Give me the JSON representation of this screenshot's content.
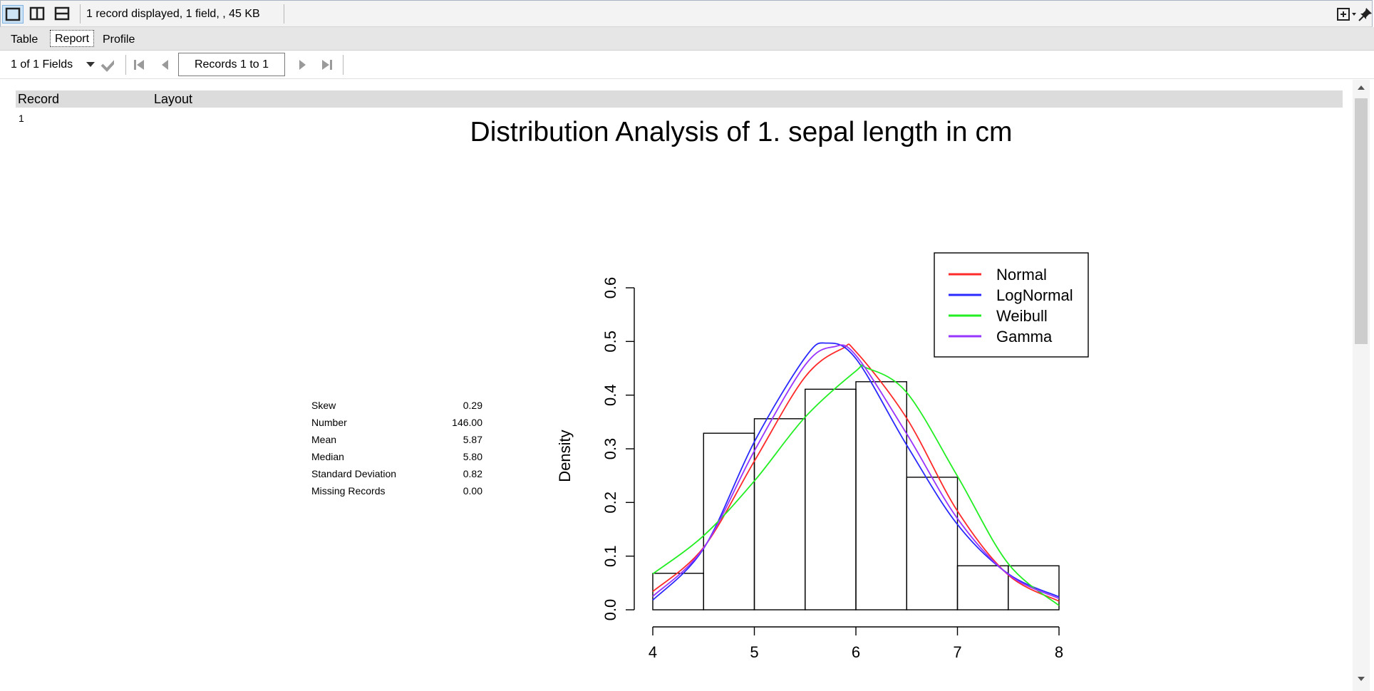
{
  "status": {
    "text": "1 record displayed, 1 field, , 45 KB"
  },
  "tabs": [
    {
      "label": "Table"
    },
    {
      "label": "Report"
    },
    {
      "label": "Profile"
    }
  ],
  "nav": {
    "fields_label": "1 of 1 Fields",
    "records_label": "Records 1 to 1"
  },
  "grid": {
    "col_record": "Record",
    "col_layout": "Layout",
    "row_number": "1"
  },
  "report": {
    "title": "Distribution Analysis of 1. sepal length in cm",
    "stats": [
      {
        "label": "Skew",
        "value": "0.29"
      },
      {
        "label": "Number",
        "value": "146.00"
      },
      {
        "label": "Mean",
        "value": "5.87"
      },
      {
        "label": "Median",
        "value": "5.80"
      },
      {
        "label": "Standard Deviation",
        "value": "0.82"
      },
      {
        "label": "Missing Records",
        "value": "0.00"
      }
    ]
  },
  "chart_data": {
    "type": "bar",
    "ylabel": "Density",
    "xlabel": "",
    "xlim": [
      4,
      8
    ],
    "ylim": [
      0,
      0.6
    ],
    "x_ticks": [
      "4",
      "5",
      "6",
      "7",
      "8"
    ],
    "y_ticks": [
      "0.0",
      "0.1",
      "0.2",
      "0.3",
      "0.4",
      "0.5",
      "0.6"
    ],
    "bins": [
      {
        "x0": 4.0,
        "x1": 4.5,
        "density": 0.068
      },
      {
        "x0": 4.5,
        "x1": 5.0,
        "density": 0.329
      },
      {
        "x0": 5.0,
        "x1": 5.5,
        "density": 0.356
      },
      {
        "x0": 5.5,
        "x1": 6.0,
        "density": 0.411
      },
      {
        "x0": 6.0,
        "x1": 6.5,
        "density": 0.425
      },
      {
        "x0": 6.5,
        "x1": 7.0,
        "density": 0.247
      },
      {
        "x0": 7.0,
        "x1": 7.5,
        "density": 0.082
      },
      {
        "x0": 7.5,
        "x1": 8.0,
        "density": 0.082
      }
    ],
    "legend_position": "top-right",
    "series": [
      {
        "name": "Normal",
        "color": "#ff2a2a",
        "x": [
          4.0,
          4.5,
          5.0,
          5.5,
          5.87,
          6.0,
          6.5,
          7.0,
          7.5,
          8.0
        ],
        "y": [
          0.034,
          0.116,
          0.277,
          0.434,
          0.487,
          0.481,
          0.357,
          0.184,
          0.065,
          0.016
        ]
      },
      {
        "name": "LogNormal",
        "color": "#2a2aff",
        "x": [
          4.0,
          4.5,
          5.0,
          5.5,
          5.71,
          6.0,
          6.5,
          7.0,
          7.5,
          8.0
        ],
        "y": [
          0.018,
          0.114,
          0.313,
          0.47,
          0.497,
          0.468,
          0.307,
          0.159,
          0.067,
          0.024
        ]
      },
      {
        "name": "Weibull",
        "color": "#22ee22",
        "x": [
          4.0,
          4.5,
          5.0,
          5.5,
          6.0,
          6.1,
          6.5,
          7.0,
          7.5,
          8.0
        ],
        "y": [
          0.067,
          0.138,
          0.24,
          0.359,
          0.445,
          0.451,
          0.405,
          0.249,
          0.086,
          0.008
        ]
      },
      {
        "name": "Gamma",
        "color": "#9933ff",
        "x": [
          4.0,
          4.5,
          5.0,
          5.5,
          5.78,
          6.0,
          6.5,
          7.0,
          7.5,
          8.0
        ],
        "y": [
          0.025,
          0.115,
          0.296,
          0.456,
          0.49,
          0.474,
          0.328,
          0.17,
          0.066,
          0.021
        ]
      }
    ]
  }
}
